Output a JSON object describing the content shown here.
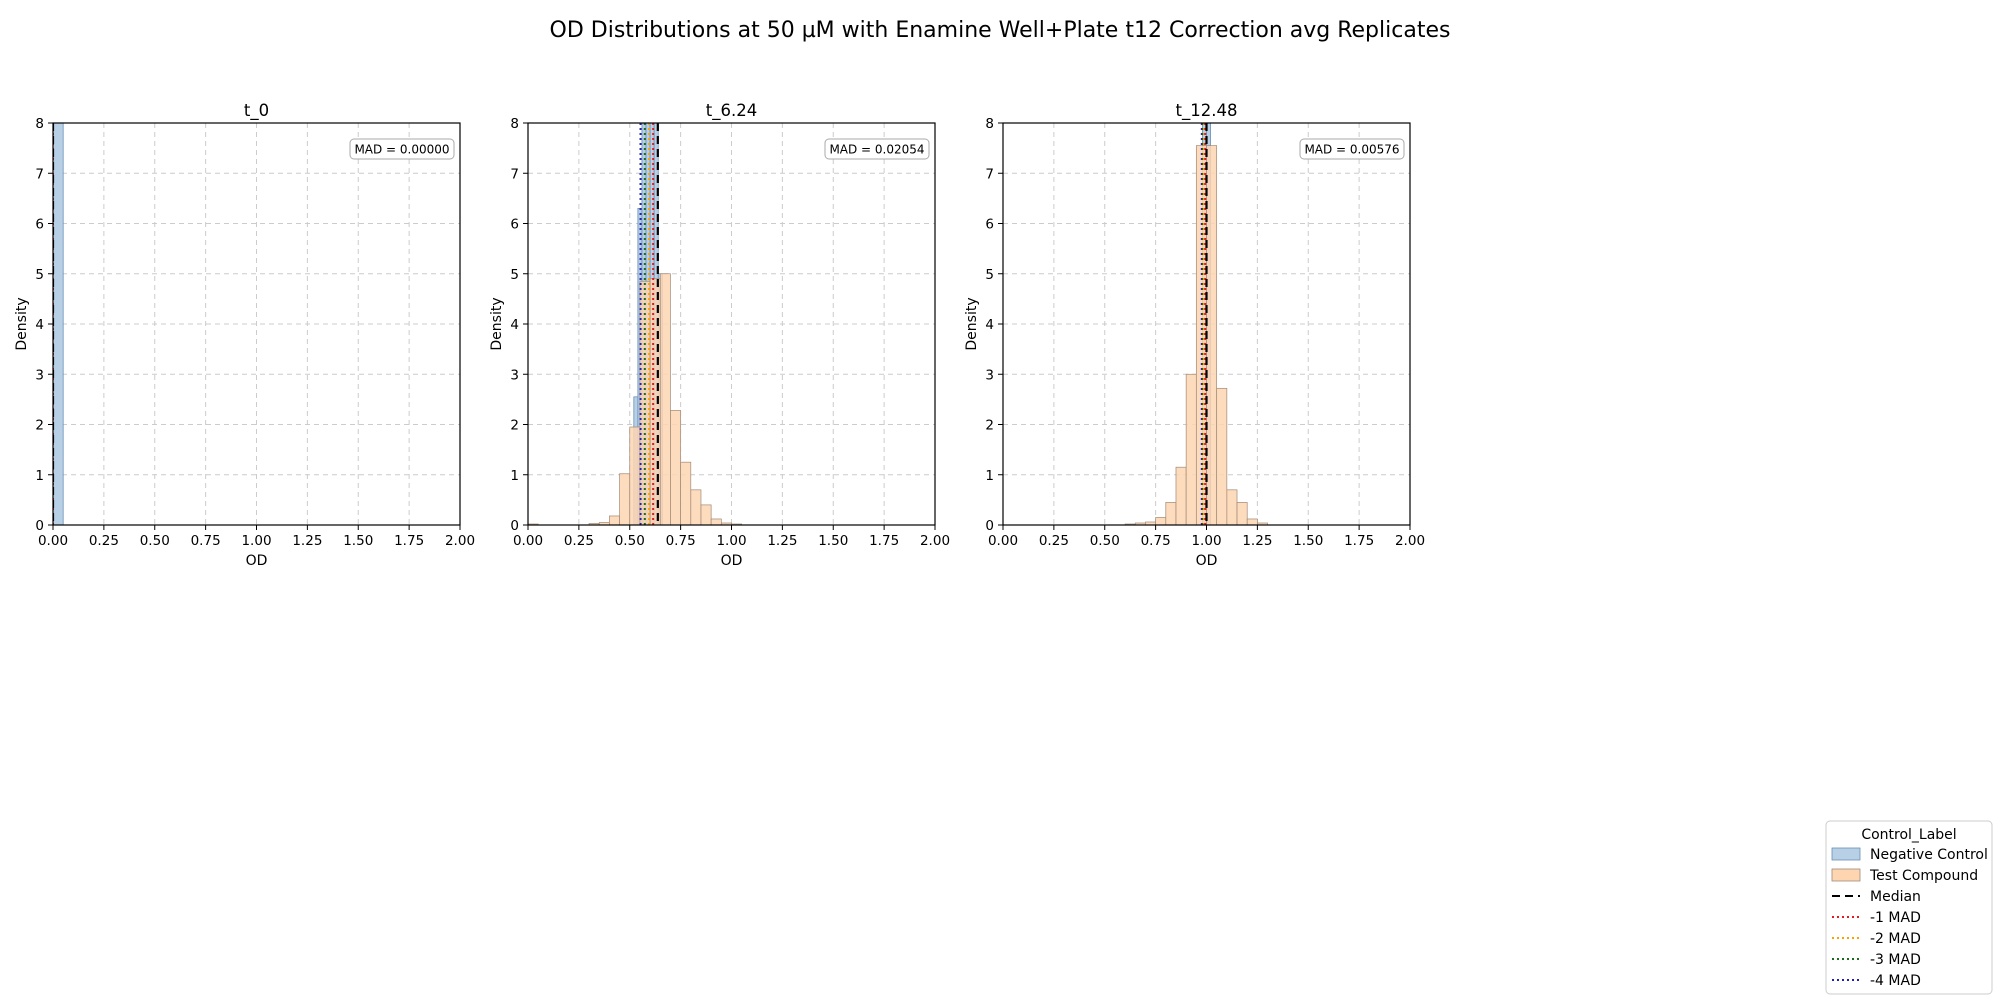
{
  "figure": {
    "title": "OD Distributions at 50 µM with Enamine Well+Plate t12 Correction avg Replicates"
  },
  "colors": {
    "negative_control": "#b8d0e6",
    "negative_control_edge": "#6a8fb5",
    "test_compound": "#fdd5b1",
    "test_compound_edge": "#a08a78",
    "median": "#000000",
    "mad1": "#e41a1c",
    "mad2": "#ff9f00",
    "mad3": "#1a6b1a",
    "mad4": "#1f1fb4",
    "grid": "#cccccc"
  },
  "legend": {
    "title": "Control_Label",
    "placement": "lower-right",
    "entries": [
      {
        "label": "Negative Control",
        "kind": "patch",
        "key": "negative_control"
      },
      {
        "label": "Test Compound",
        "kind": "patch",
        "key": "test_compound"
      },
      {
        "label": "Median",
        "kind": "dashed",
        "key": "median"
      },
      {
        "label": "-1 MAD",
        "kind": "dotted",
        "key": "mad1"
      },
      {
        "label": "-2 MAD",
        "kind": "dotted",
        "key": "mad2"
      },
      {
        "label": "-3 MAD",
        "kind": "dotted",
        "key": "mad3"
      },
      {
        "label": "-4 MAD",
        "kind": "dotted",
        "key": "mad4"
      }
    ]
  },
  "chart_data": [
    {
      "type": "histogram",
      "title": "t_0",
      "xlabel": "OD",
      "ylabel": "Density",
      "xlim": [
        0,
        2
      ],
      "ylim": [
        0,
        8
      ],
      "xticks": [
        "0.00",
        "0.25",
        "0.50",
        "0.75",
        "1.00",
        "1.25",
        "1.50",
        "1.75",
        "2.00"
      ],
      "yticks": [
        "0",
        "1",
        "2",
        "3",
        "4",
        "5",
        "6",
        "7",
        "8"
      ],
      "grid": true,
      "annotation": "MAD = 0.00000",
      "series": [
        {
          "name": "Negative Control",
          "bins": [
            [
              0.0,
              0.05,
              8.0
            ]
          ]
        },
        {
          "name": "Test Compound",
          "bins": []
        }
      ],
      "lines": {
        "median": 0.0,
        "mad1": 0.0,
        "mad2": 0.0,
        "mad3": 0.0,
        "mad4": 0.0
      }
    },
    {
      "type": "histogram",
      "title": "t_6.24",
      "xlabel": "OD",
      "ylabel": "Density",
      "xlim": [
        0,
        2
      ],
      "ylim": [
        0,
        8
      ],
      "xticks": [
        "0.00",
        "0.25",
        "0.50",
        "0.75",
        "1.00",
        "1.25",
        "1.50",
        "1.75",
        "2.00"
      ],
      "yticks": [
        "0",
        "1",
        "2",
        "3",
        "4",
        "5",
        "6",
        "7",
        "8"
      ],
      "grid": true,
      "annotation": "MAD = 0.02054",
      "series": [
        {
          "name": "Negative Control",
          "bins": [
            [
              0.52,
              0.54,
              2.55
            ],
            [
              0.54,
              0.56,
              6.3
            ],
            [
              0.56,
              0.58,
              8.0
            ],
            [
              0.58,
              0.6,
              8.0
            ],
            [
              0.6,
              0.62,
              8.0
            ],
            [
              0.62,
              0.64,
              8.0
            ],
            [
              0.64,
              0.66,
              5.0
            ]
          ]
        },
        {
          "name": "Test Compound",
          "bins": [
            [
              0.0,
              0.05,
              0.02
            ],
            [
              0.3,
              0.35,
              0.03
            ],
            [
              0.35,
              0.4,
              0.05
            ],
            [
              0.4,
              0.45,
              0.18
            ],
            [
              0.45,
              0.5,
              1.02
            ],
            [
              0.5,
              0.55,
              1.95
            ],
            [
              0.55,
              0.6,
              4.85
            ],
            [
              0.6,
              0.65,
              4.9
            ],
            [
              0.65,
              0.7,
              5.0
            ],
            [
              0.7,
              0.75,
              2.28
            ],
            [
              0.75,
              0.8,
              1.25
            ],
            [
              0.8,
              0.85,
              0.7
            ],
            [
              0.85,
              0.9,
              0.4
            ],
            [
              0.9,
              0.95,
              0.12
            ],
            [
              0.95,
              1.0,
              0.04
            ],
            [
              1.0,
              1.05,
              0.02
            ]
          ]
        }
      ],
      "lines": {
        "median": 0.638,
        "mad1": 0.615,
        "mad2": 0.595,
        "mad3": 0.574,
        "mad4": 0.553
      }
    },
    {
      "type": "histogram",
      "title": "t_12.48",
      "xlabel": "OD",
      "ylabel": "Density",
      "xlim": [
        0,
        2
      ],
      "ylim": [
        0,
        8
      ],
      "xticks": [
        "0.00",
        "0.25",
        "0.50",
        "0.75",
        "1.00",
        "1.25",
        "1.50",
        "1.75",
        "2.00"
      ],
      "yticks": [
        "0",
        "1",
        "2",
        "3",
        "4",
        "5",
        "6",
        "7",
        "8"
      ],
      "grid": true,
      "annotation": "MAD = 0.00576",
      "series": [
        {
          "name": "Negative Control",
          "bins": [
            [
              0.98,
              1.0,
              8.0
            ],
            [
              1.0,
              1.02,
              8.0
            ]
          ]
        },
        {
          "name": "Test Compound",
          "bins": [
            [
              0.6,
              0.65,
              0.02
            ],
            [
              0.65,
              0.7,
              0.04
            ],
            [
              0.7,
              0.75,
              0.06
            ],
            [
              0.75,
              0.8,
              0.15
            ],
            [
              0.8,
              0.85,
              0.45
            ],
            [
              0.85,
              0.9,
              1.15
            ],
            [
              0.9,
              0.95,
              3.0
            ],
            [
              0.95,
              1.0,
              7.55
            ],
            [
              1.0,
              1.05,
              7.55
            ],
            [
              1.05,
              1.1,
              2.72
            ],
            [
              1.1,
              1.15,
              0.7
            ],
            [
              1.15,
              1.2,
              0.45
            ],
            [
              1.2,
              1.25,
              0.12
            ],
            [
              1.25,
              1.3,
              0.04
            ]
          ]
        }
      ],
      "lines": {
        "median": 1.0,
        "mad1": 0.994,
        "mad2": 0.988,
        "mad3": 0.983,
        "mad4": 0.977
      }
    }
  ]
}
